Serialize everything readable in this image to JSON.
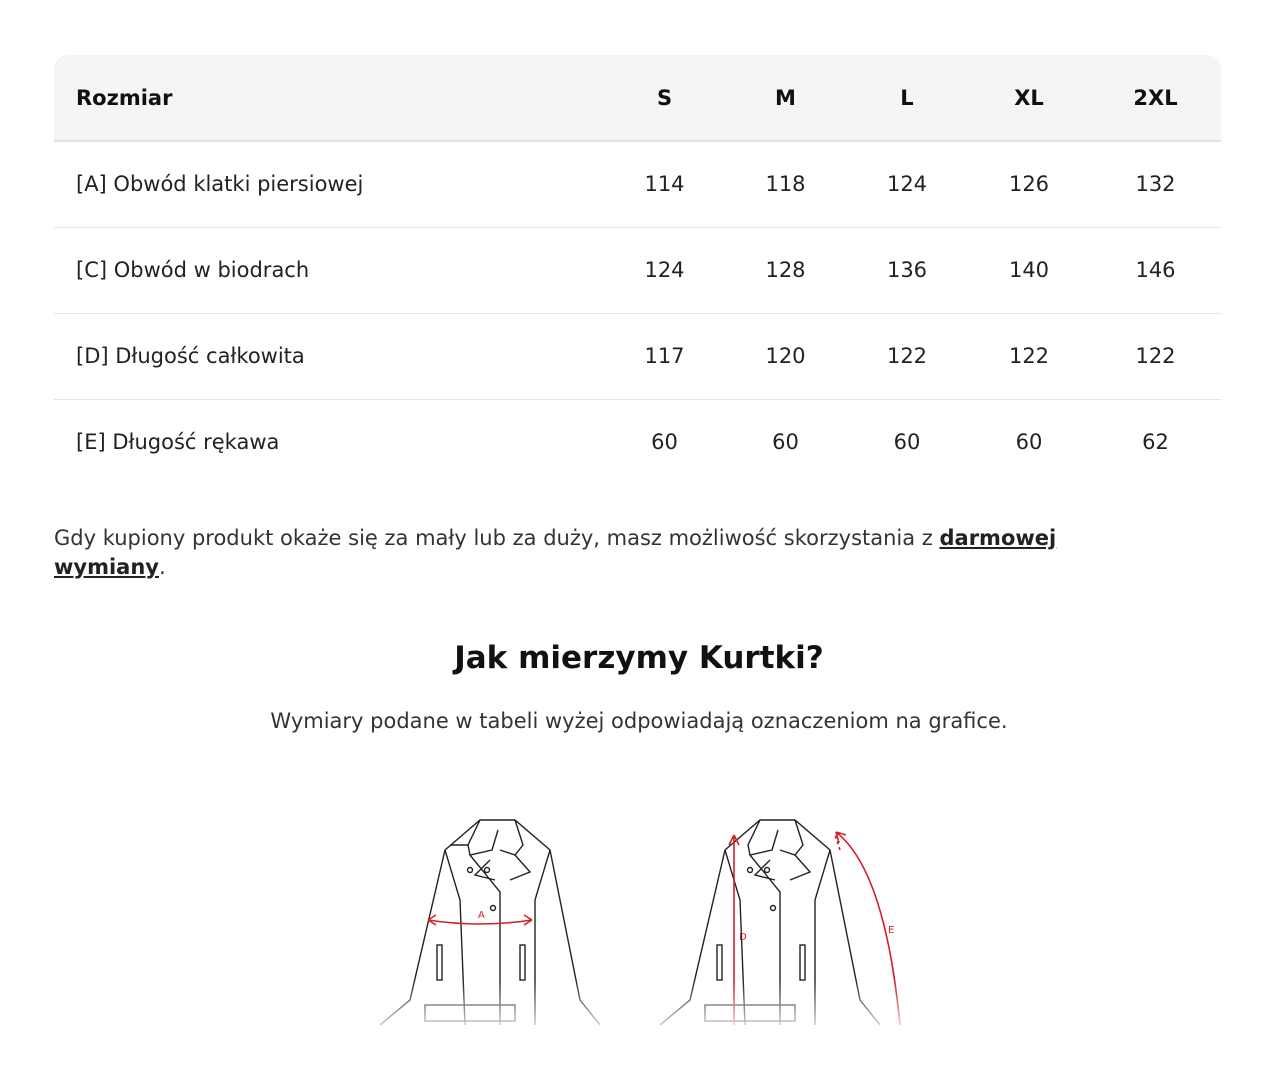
{
  "table": {
    "headers": [
      "Rozmiar",
      "S",
      "M",
      "L",
      "XL",
      "2XL"
    ],
    "rows": [
      {
        "label": "[A] Obwód klatki piersiowej",
        "values": [
          "114",
          "118",
          "124",
          "126",
          "132"
        ]
      },
      {
        "label": "[C] Obwód w biodrach",
        "values": [
          "124",
          "128",
          "136",
          "140",
          "146"
        ]
      },
      {
        "label": "[D] Długość całkowita",
        "values": [
          "117",
          "120",
          "122",
          "122",
          "122"
        ]
      },
      {
        "label": "[E] Długość rękawa",
        "values": [
          "60",
          "60",
          "60",
          "60",
          "62"
        ]
      }
    ]
  },
  "note": {
    "text": "Gdy kupiony produkt okaże się za mały lub za duży, masz możliwość skorzystania z ",
    "link": "darmowej wymiany",
    "end": "."
  },
  "section": {
    "title": "Jak mierzymy Kurtki?",
    "subtitle": "Wymiary podane w tabeli wyżej odpowiadają oznaczeniom na grafice."
  },
  "diagram": {
    "labels": {
      "a": "A",
      "d": "D",
      "e": "E"
    },
    "accent": "#d0202a"
  }
}
